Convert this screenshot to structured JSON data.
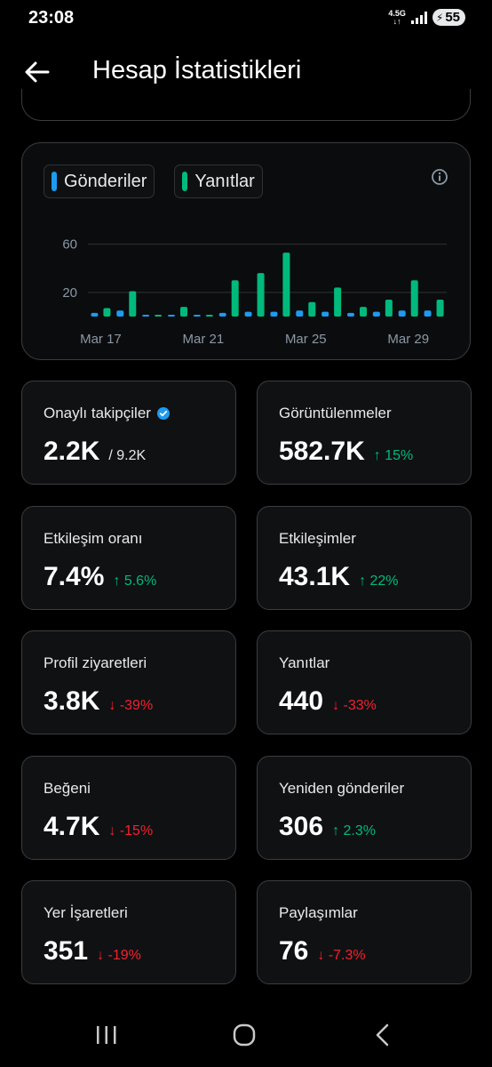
{
  "status": {
    "time": "23:08",
    "network": "4.5G",
    "battery": "55"
  },
  "header": {
    "title": "Hesap İstatistikleri"
  },
  "legend": [
    {
      "label": "Gönderiler",
      "color": "#1d9bf0"
    },
    {
      "label": "Yanıtlar",
      "color": "#00ba7c"
    }
  ],
  "chart_data": {
    "type": "bar",
    "categories": [
      "Mar 17",
      "Mar 18",
      "Mar 19",
      "Mar 20",
      "Mar 21",
      "Mar 22",
      "Mar 23",
      "Mar 24",
      "Mar 25",
      "Mar 26",
      "Mar 27",
      "Mar 28",
      "Mar 29",
      "Mar 30"
    ],
    "series": [
      {
        "name": "Gönderiler",
        "color": "#1d9bf0",
        "values": [
          3,
          5,
          0,
          1,
          0,
          3,
          4,
          4,
          5,
          4,
          3,
          4,
          5,
          5
        ]
      },
      {
        "name": "Yanıtlar",
        "color": "#00ba7c",
        "values": [
          7,
          21,
          0,
          8,
          0,
          30,
          36,
          53,
          12,
          24,
          8,
          14,
          30,
          14
        ]
      }
    ],
    "x_tick_labels": [
      "Mar 17",
      "Mar 21",
      "Mar 25",
      "Mar 29"
    ],
    "y_tick_labels": [
      "60",
      "20"
    ],
    "y_ticks": [
      60,
      20
    ],
    "ylim": [
      0,
      70
    ],
    "grid": true
  },
  "stats": [
    {
      "label": "Onaylı takipçiler",
      "value": "2.2K",
      "sub": "/ 9.2K",
      "change": "",
      "direction": "",
      "verified": true
    },
    {
      "label": "Görüntülenmeler",
      "value": "582.7K",
      "sub": "",
      "change": "↑ 15%",
      "direction": "up"
    },
    {
      "label": "Etkileşim oranı",
      "value": "7.4%",
      "sub": "",
      "change": "↑ 5.6%",
      "direction": "up"
    },
    {
      "label": "Etkileşimler",
      "value": "43.1K",
      "sub": "",
      "change": "↑ 22%",
      "direction": "up"
    },
    {
      "label": "Profil ziyaretleri",
      "value": "3.8K",
      "sub": "",
      "change": "↓ -39%",
      "direction": "down"
    },
    {
      "label": "Yanıtlar",
      "value": "440",
      "sub": "",
      "change": "↓ -33%",
      "direction": "down"
    },
    {
      "label": "Beğeni",
      "value": "4.7K",
      "sub": "",
      "change": "↓ -15%",
      "direction": "down"
    },
    {
      "label": "Yeniden gönderiler",
      "value": "306",
      "sub": "",
      "change": "↑ 2.3%",
      "direction": "up"
    },
    {
      "label": "Yer İşaretleri",
      "value": "351",
      "sub": "",
      "change": "↓ -19%",
      "direction": "down"
    },
    {
      "label": "Paylaşımlar",
      "value": "76",
      "sub": "",
      "change": "↓ -7.3%",
      "direction": "down"
    }
  ],
  "icons": {
    "back": "arrow-left-icon",
    "info": "info-icon",
    "verified": "verified-badge-icon"
  }
}
